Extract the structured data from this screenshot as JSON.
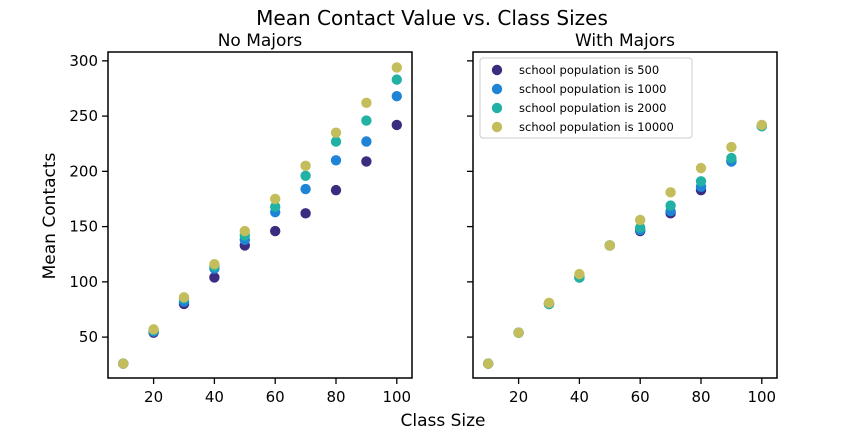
{
  "figure": {
    "title": "Mean Contact Value vs. Class Sizes",
    "xlabel": "Class Size",
    "ylabel": "Mean Contacts"
  },
  "colors": {
    "pop500": "#3b2c7f",
    "pop1000": "#1f84d6",
    "pop2000": "#22b2a5",
    "pop10000": "#c4bd5c"
  },
  "chart_data": [
    {
      "type": "scatter",
      "title": "No Majors",
      "xlabel": "Class Size",
      "ylabel": "Mean Contacts",
      "xlim": [
        5,
        105
      ],
      "ylim": [
        13,
        308
      ],
      "xticks": [
        20,
        40,
        60,
        80,
        100
      ],
      "yticks": [
        50,
        100,
        150,
        200,
        250,
        300
      ],
      "x": [
        10,
        20,
        30,
        40,
        50,
        60,
        70,
        80,
        90,
        100
      ],
      "series": [
        {
          "key": "pop500",
          "values": [
            26,
            54,
            80,
            104,
            133,
            146,
            162,
            183,
            209,
            242
          ]
        },
        {
          "key": "pop1000",
          "values": [
            26,
            55,
            82,
            112,
            138,
            163,
            184,
            210,
            227,
            268
          ]
        },
        {
          "key": "pop2000",
          "values": [
            26,
            56,
            85,
            114,
            142,
            168,
            196,
            227,
            246,
            283
          ]
        },
        {
          "key": "pop10000",
          "values": [
            26,
            57,
            86,
            116,
            146,
            175,
            205,
            235,
            262,
            294
          ]
        }
      ],
      "grid": false
    },
    {
      "type": "scatter",
      "title": "With Majors",
      "xlabel": "Class Size",
      "xlim": [
        5,
        105
      ],
      "ylim": [
        13,
        308
      ],
      "xticks": [
        20,
        40,
        60,
        80,
        100
      ],
      "x": [
        10,
        20,
        30,
        40,
        50,
        60,
        70,
        80,
        90,
        100
      ],
      "series": [
        {
          "key": "pop500",
          "name": "school population is 500",
          "values": [
            26,
            54,
            80,
            104,
            133,
            146,
            162,
            183,
            209,
            241
          ]
        },
        {
          "key": "pop1000",
          "name": "school population is 1000",
          "values": [
            26,
            54,
            80,
            104,
            133,
            147,
            164,
            186,
            209,
            241
          ]
        },
        {
          "key": "pop2000",
          "name": "school population is 2000",
          "values": [
            26,
            54,
            80,
            104,
            133,
            149,
            169,
            191,
            212,
            241
          ]
        },
        {
          "key": "pop10000",
          "name": "school population is 10000",
          "values": [
            26,
            54,
            81,
            107,
            133,
            156,
            181,
            203,
            222,
            242
          ]
        }
      ],
      "legend": "top-left",
      "grid": false
    }
  ]
}
